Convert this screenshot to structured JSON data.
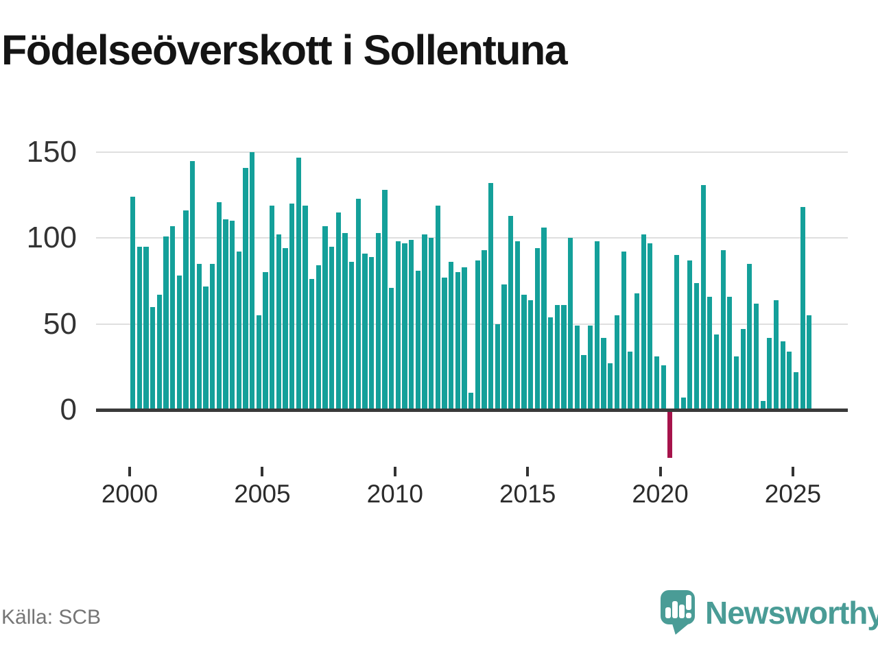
{
  "title": "Födelseöverskott i Sollentuna",
  "source": "Källa: SCB",
  "branding": {
    "name": "Newsworthy",
    "icon": "speech-bubble-bar-chart",
    "color": "#4a9c96"
  },
  "chart_data": {
    "type": "bar",
    "title": "Födelseöverskott i Sollentuna",
    "frequency": "quarterly",
    "x_start": {
      "year": 2000,
      "quarter": 1
    },
    "x_end": {
      "year": 2025,
      "quarter": 3
    },
    "values": [
      124,
      95,
      95,
      60,
      67,
      101,
      107,
      78,
      116,
      145,
      85,
      72,
      85,
      121,
      111,
      110,
      92,
      141,
      150,
      55,
      80,
      119,
      102,
      94,
      120,
      147,
      119,
      76,
      84,
      107,
      95,
      115,
      103,
      86,
      123,
      91,
      89,
      103,
      128,
      71,
      98,
      97,
      99,
      81,
      102,
      100,
      119,
      77,
      86,
      80,
      83,
      10,
      87,
      93,
      132,
      50,
      73,
      113,
      98,
      67,
      64,
      94,
      106,
      54,
      61,
      61,
      100,
      49,
      32,
      49,
      98,
      42,
      27,
      55,
      92,
      34,
      68,
      102,
      97,
      31,
      26,
      -28,
      90,
      7,
      87,
      74,
      131,
      66,
      44,
      93,
      66,
      31,
      47,
      85,
      62,
      5,
      42,
      64,
      40,
      34,
      22,
      118,
      55
    ],
    "y_ticks": [
      0,
      50,
      100,
      150
    ],
    "x_ticks": [
      2000,
      2005,
      2010,
      2015,
      2020,
      2025
    ],
    "ylim": [
      -35,
      158
    ],
    "grid": "horizontal",
    "legend": "none",
    "bar_color": "#14a09a",
    "negative_bar_color": "#a6134b",
    "axis_text_color": "#333333",
    "gridline_color": "#dfdfdf",
    "baseline_color": "#3a3a3a"
  }
}
